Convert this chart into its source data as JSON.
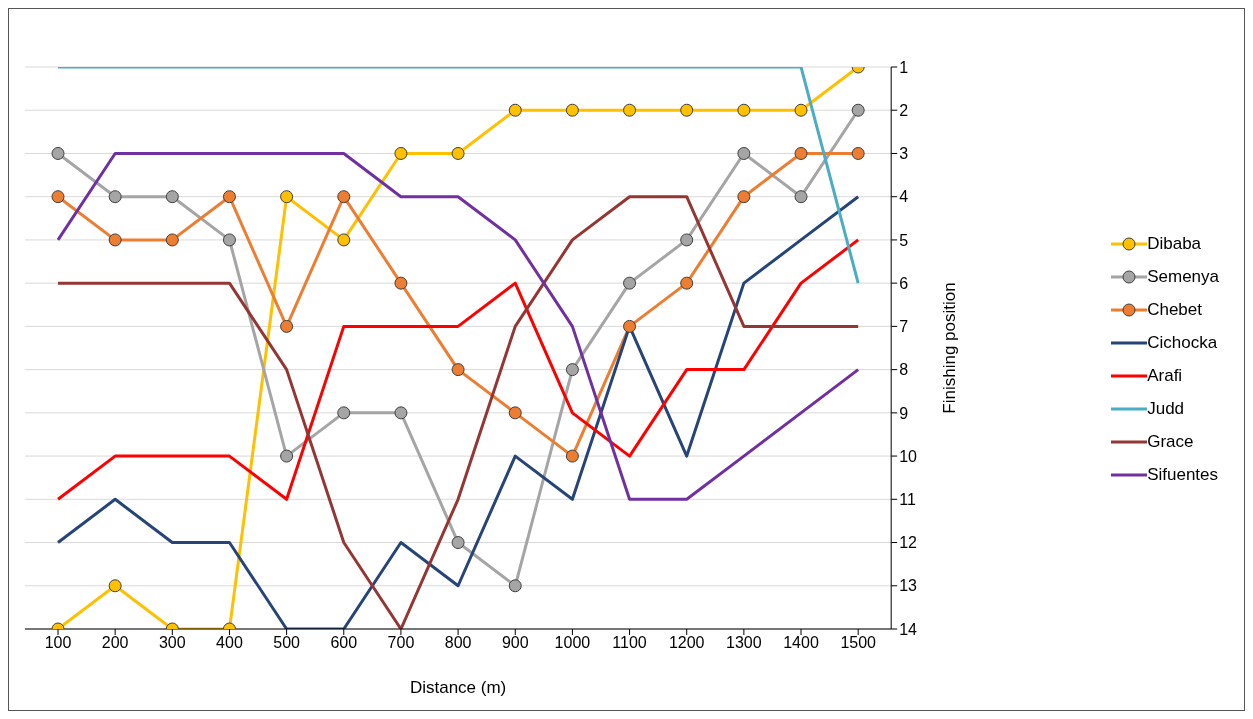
{
  "chart_data": {
    "type": "line",
    "xlabel": "Distance (m)",
    "ylabel": "Finishing position",
    "categories": [
      "100",
      "200",
      "300",
      "400",
      "500",
      "600",
      "700",
      "800",
      "900",
      "1000",
      "1100",
      "1200",
      "1300",
      "1400",
      "1500"
    ],
    "ylim": [
      14,
      1
    ],
    "yticks": [
      1,
      2,
      3,
      4,
      5,
      6,
      7,
      8,
      9,
      10,
      11,
      12,
      13,
      14
    ],
    "grid": "y",
    "legend": "right",
    "marker": "none",
    "series": [
      {
        "name": "Dibaba",
        "color": "#ffc000",
        "marker": "circle",
        "values": [
          14,
          13,
          14,
          14,
          4,
          5,
          3,
          3,
          2,
          2,
          2,
          2,
          2,
          2,
          1
        ]
      },
      {
        "name": "Semenya",
        "color": "#a5a5a5",
        "marker": "circle",
        "values": [
          3,
          4,
          4,
          5,
          10,
          9,
          9,
          12,
          13,
          8,
          6,
          5,
          3,
          4,
          2
        ]
      },
      {
        "name": "Chebet",
        "color": "#ed7d31",
        "marker": "circle",
        "values": [
          4,
          5,
          5,
          4,
          7,
          4,
          6,
          8,
          9,
          10,
          7,
          6,
          4,
          3,
          3
        ]
      },
      {
        "name": "Cichocka",
        "color": "#264478",
        "values": [
          12,
          11,
          12,
          12,
          14,
          14,
          12,
          13,
          10,
          11,
          7,
          10,
          6,
          5,
          4
        ]
      },
      {
        "name": "Arafi",
        "color": "#ff0000",
        "values": [
          11,
          10,
          10,
          10,
          11,
          7,
          7,
          7,
          6,
          9,
          10,
          8,
          8,
          6,
          5
        ]
      },
      {
        "name": "Judd",
        "color": "#4bacc6",
        "values": [
          1,
          1,
          1,
          1,
          1,
          1,
          1,
          1,
          1,
          1,
          1,
          1,
          1,
          1,
          6
        ]
      },
      {
        "name": "Grace",
        "color": "#943634",
        "values": [
          6,
          6,
          6,
          6,
          8,
          12,
          14,
          11,
          7,
          5,
          4,
          4,
          7,
          7,
          7
        ]
      },
      {
        "name": "Sifuentes",
        "color": "#7030a0",
        "values": [
          5,
          3,
          3,
          3,
          3,
          3,
          4,
          4,
          5,
          7,
          11,
          11,
          10,
          9,
          8
        ]
      }
    ]
  }
}
